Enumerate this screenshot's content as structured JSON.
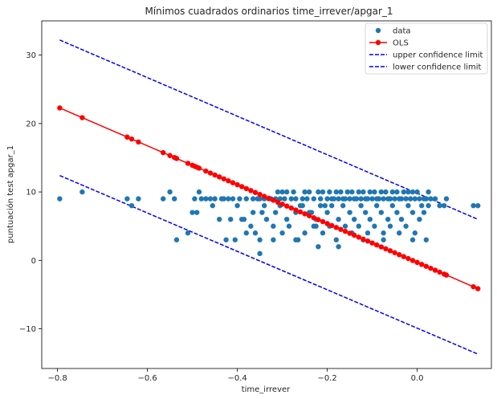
{
  "chart_data": {
    "type": "scatter",
    "title": "Mínimos cuadrados ordinarios time_irrever/apgar_1",
    "xlabel": "time_irrever",
    "ylabel": "puntuación test apgar_1",
    "xlim": [
      -0.835,
      0.165
    ],
    "ylim": [
      -15.8,
      35.0
    ],
    "xticks": [
      -0.8,
      -0.6,
      -0.4,
      -0.2,
      0.0
    ],
    "xtick_labels": [
      "−0.8",
      "−0.6",
      "−0.4",
      "−0.2",
      "0.0"
    ],
    "yticks": [
      -10,
      0,
      10,
      20,
      30
    ],
    "ytick_labels": [
      "−10",
      "0",
      "10",
      "20",
      "30"
    ],
    "grid": false,
    "legend_position": "top-right",
    "legend": [
      {
        "label": "data",
        "color": "#1f77b4",
        "style": "marker"
      },
      {
        "label": "OLS",
        "color": "#ff0000",
        "style": "line-marker"
      },
      {
        "label": "upper confidence limit",
        "color": "#0000ff",
        "style": "dashed"
      },
      {
        "label": "lower confidence limit",
        "color": "#0000ff",
        "style": "dashed"
      }
    ],
    "series": [
      {
        "name": "data",
        "kind": "scatter",
        "color": "#1f77b4",
        "points": [
          [
            -0.795,
            9
          ],
          [
            -0.745,
            10
          ],
          [
            -0.645,
            9
          ],
          [
            -0.635,
            8
          ],
          [
            -0.62,
            9
          ],
          [
            -0.565,
            9
          ],
          [
            -0.55,
            10
          ],
          [
            -0.54,
            9
          ],
          [
            -0.535,
            3
          ],
          [
            -0.51,
            4
          ],
          [
            -0.5,
            7
          ],
          [
            -0.495,
            9
          ],
          [
            -0.49,
            7
          ],
          [
            -0.485,
            10
          ],
          [
            -0.48,
            9
          ],
          [
            -0.47,
            9
          ],
          [
            -0.46,
            9
          ],
          [
            -0.455,
            8
          ],
          [
            -0.45,
            9
          ],
          [
            -0.44,
            6
          ],
          [
            -0.435,
            9
          ],
          [
            -0.43,
            9
          ],
          [
            -0.42,
            9
          ],
          [
            -0.415,
            6
          ],
          [
            -0.41,
            9
          ],
          [
            -0.405,
            3
          ],
          [
            -0.4,
            8
          ],
          [
            -0.395,
            9
          ],
          [
            -0.39,
            6
          ],
          [
            -0.385,
            6
          ],
          [
            -0.38,
            9
          ],
          [
            -0.37,
            5
          ],
          [
            -0.365,
            9
          ],
          [
            -0.36,
            4
          ],
          [
            -0.355,
            9
          ],
          [
            -0.35,
            9
          ],
          [
            -0.345,
            7
          ],
          [
            -0.34,
            9
          ],
          [
            -0.335,
            6
          ],
          [
            -0.33,
            9
          ],
          [
            -0.325,
            9
          ],
          [
            -0.32,
            5
          ],
          [
            -0.315,
            9
          ],
          [
            -0.31,
            10
          ],
          [
            -0.305,
            9
          ],
          [
            -0.3,
            10
          ],
          [
            -0.295,
            9
          ],
          [
            -0.29,
            10
          ],
          [
            -0.285,
            5
          ],
          [
            -0.28,
            9
          ],
          [
            -0.275,
            10
          ],
          [
            -0.27,
            9
          ],
          [
            -0.265,
            3
          ],
          [
            -0.26,
            8
          ],
          [
            -0.255,
            9
          ],
          [
            -0.25,
            10
          ],
          [
            -0.245,
            9
          ],
          [
            -0.24,
            10
          ],
          [
            -0.235,
            7
          ],
          [
            -0.23,
            9
          ],
          [
            -0.225,
            5
          ],
          [
            -0.22,
            10
          ],
          [
            -0.215,
            9
          ],
          [
            -0.21,
            10
          ],
          [
            -0.205,
            8
          ],
          [
            -0.2,
            9
          ],
          [
            -0.195,
            10
          ],
          [
            -0.19,
            9
          ],
          [
            -0.185,
            9
          ],
          [
            -0.18,
            10
          ],
          [
            -0.175,
            9
          ],
          [
            -0.17,
            10
          ],
          [
            -0.165,
            9
          ],
          [
            -0.16,
            9
          ],
          [
            -0.155,
            10
          ],
          [
            -0.15,
            9
          ],
          [
            -0.145,
            10
          ],
          [
            -0.14,
            9
          ],
          [
            -0.135,
            9
          ],
          [
            -0.13,
            10
          ],
          [
            -0.125,
            9
          ],
          [
            -0.12,
            10
          ],
          [
            -0.115,
            9
          ],
          [
            -0.11,
            9
          ],
          [
            -0.105,
            10
          ],
          [
            -0.1,
            9
          ],
          [
            -0.095,
            10
          ],
          [
            -0.09,
            9
          ],
          [
            -0.085,
            9
          ],
          [
            -0.08,
            10
          ],
          [
            -0.075,
            9
          ],
          [
            -0.07,
            10
          ],
          [
            -0.065,
            9
          ],
          [
            -0.06,
            9
          ],
          [
            -0.055,
            10
          ],
          [
            -0.05,
            9
          ],
          [
            -0.045,
            10
          ],
          [
            -0.04,
            9
          ],
          [
            -0.035,
            9
          ],
          [
            -0.03,
            10
          ],
          [
            -0.025,
            9
          ],
          [
            -0.02,
            10
          ],
          [
            -0.015,
            9
          ],
          [
            -0.01,
            10
          ],
          [
            -0.005,
            9
          ],
          [
            0.0,
            10
          ],
          [
            0.005,
            9
          ],
          [
            0.01,
            8
          ],
          [
            0.015,
            9
          ],
          [
            0.02,
            9
          ],
          [
            0.025,
            10
          ],
          [
            0.03,
            9
          ],
          [
            0.04,
            9
          ],
          [
            0.05,
            8
          ],
          [
            0.06,
            8
          ],
          [
            0.065,
            9
          ],
          [
            0.125,
            8
          ],
          [
            0.135,
            8
          ],
          [
            -0.365,
            7
          ],
          [
            -0.34,
            8
          ],
          [
            -0.315,
            7
          ],
          [
            -0.305,
            8
          ],
          [
            -0.29,
            6
          ],
          [
            -0.27,
            7
          ],
          [
            -0.255,
            8
          ],
          [
            -0.24,
            7
          ],
          [
            -0.225,
            6
          ],
          [
            -0.215,
            8
          ],
          [
            -0.2,
            7
          ],
          [
            -0.19,
            8
          ],
          [
            -0.175,
            6
          ],
          [
            -0.165,
            8
          ],
          [
            -0.15,
            7
          ],
          [
            -0.14,
            6
          ],
          [
            -0.125,
            8
          ],
          [
            -0.115,
            7
          ],
          [
            -0.105,
            6
          ],
          [
            -0.09,
            8
          ],
          [
            -0.08,
            7
          ],
          [
            -0.065,
            6
          ],
          [
            -0.055,
            8
          ],
          [
            -0.045,
            7
          ],
          [
            -0.035,
            6
          ],
          [
            -0.02,
            8
          ],
          [
            -0.01,
            7
          ],
          [
            0.005,
            6
          ],
          [
            0.015,
            7
          ],
          [
            0.025,
            8
          ],
          [
            -0.25,
            4
          ],
          [
            -0.23,
            5
          ],
          [
            -0.21,
            4
          ],
          [
            -0.195,
            5
          ],
          [
            -0.18,
            3
          ],
          [
            -0.16,
            5
          ],
          [
            -0.145,
            4
          ],
          [
            -0.13,
            5
          ],
          [
            -0.11,
            4
          ],
          [
            -0.095,
            5
          ],
          [
            -0.075,
            4
          ],
          [
            -0.06,
            5
          ],
          [
            -0.04,
            4
          ],
          [
            -0.025,
            5
          ],
          [
            -0.005,
            4
          ],
          [
            -0.22,
            2
          ],
          [
            -0.175,
            2
          ],
          [
            -0.35,
            1
          ],
          [
            -0.35,
            3
          ],
          [
            -0.3,
            4
          ],
          [
            -0.27,
            3
          ],
          [
            -0.12,
            3
          ],
          [
            -0.075,
            3
          ],
          [
            -0.01,
            3
          ],
          [
            0.02,
            3
          ],
          [
            -0.425,
            3
          ],
          [
            -0.38,
            4
          ],
          [
            -0.32,
            3
          ]
        ]
      },
      {
        "name": "OLS",
        "kind": "line",
        "color": "#ff0000",
        "x": [
          -0.795,
          -0.745,
          -0.645,
          -0.635,
          -0.62,
          -0.565,
          -0.55,
          -0.54,
          -0.535,
          -0.51,
          -0.5,
          -0.495,
          -0.49,
          -0.485,
          -0.47,
          -0.46,
          -0.45,
          -0.44,
          -0.43,
          -0.42,
          -0.41,
          -0.4,
          -0.39,
          -0.38,
          -0.37,
          -0.36,
          -0.35,
          -0.34,
          -0.33,
          -0.32,
          -0.31,
          -0.3,
          -0.29,
          -0.28,
          -0.27,
          -0.26,
          -0.25,
          -0.24,
          -0.23,
          -0.22,
          -0.21,
          -0.2,
          -0.19,
          -0.18,
          -0.17,
          -0.16,
          -0.15,
          -0.14,
          -0.13,
          -0.12,
          -0.11,
          -0.1,
          -0.09,
          -0.08,
          -0.07,
          -0.06,
          -0.05,
          -0.04,
          -0.03,
          -0.02,
          -0.01,
          0.0,
          0.01,
          0.02,
          0.03,
          0.04,
          0.05,
          0.06,
          0.065,
          0.125,
          0.135
        ],
        "intercept": -0.3,
        "slope": -28.4
      },
      {
        "name": "upper confidence limit",
        "kind": "line",
        "color": "#0000ff",
        "x": [
          -0.795,
          0.135
        ],
        "y": [
          32.2,
          6.0
        ]
      },
      {
        "name": "lower confidence limit",
        "kind": "line",
        "color": "#0000ff",
        "x": [
          -0.795,
          0.135
        ],
        "y": [
          12.4,
          -13.7
        ]
      }
    ]
  }
}
